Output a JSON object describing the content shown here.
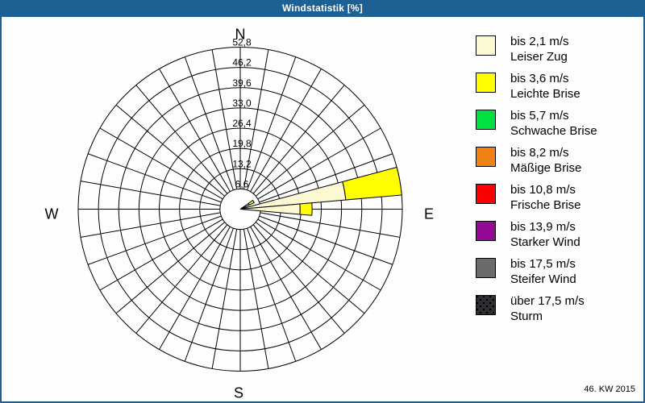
{
  "window": {
    "title": "Windstatistik [%]"
  },
  "footer": {
    "calendar_week": "46. KW 2015"
  },
  "colors": {
    "titlebar": "#1D6194",
    "frame_border": "#1D6194",
    "background": "#FDFEFD",
    "grid": "#000000"
  },
  "compass": {
    "north": "N",
    "east": "E",
    "south": "S",
    "west": "W"
  },
  "legend": {
    "items": [
      {
        "speed": "bis 2,1 m/s",
        "name": "Leiser Zug",
        "color": "#FBF8D2",
        "pattern": "solid"
      },
      {
        "speed": "bis 3,6 m/s",
        "name": "Leichte Brise",
        "color": "#FFFF00",
        "pattern": "solid"
      },
      {
        "speed": "bis 5,7 m/s",
        "name": "Schwache Brise",
        "color": "#00E040",
        "pattern": "solid"
      },
      {
        "speed": "bis 8,2 m/s",
        "name": "Mäßige Brise",
        "color": "#EE8214",
        "pattern": "solid"
      },
      {
        "speed": "bis 10,8 m/s",
        "name": "Frische Brise",
        "color": "#FA0000",
        "pattern": "solid"
      },
      {
        "speed": "bis 13,9 m/s",
        "name": "Starker Wind",
        "color": "#940A94",
        "pattern": "solid"
      },
      {
        "speed": "bis 17,5 m/s",
        "name": "Steifer Wind",
        "color": "#6B6B6B",
        "pattern": "solid"
      },
      {
        "speed": "über 17,5 m/s",
        "name": "Sturm",
        "color": "#2E2E35",
        "pattern": "dots"
      }
    ]
  },
  "chart_data": {
    "type": "wind-rose",
    "title": "Windstatistik [%]",
    "units": "%",
    "sector_count": 36,
    "sector_width_deg": 10,
    "rmax": 52.8,
    "ring_values": [
      6.6,
      13.2,
      19.8,
      26.4,
      33.0,
      39.6,
      46.2,
      52.8
    ],
    "ring_labels": [
      "6,6",
      "13,2",
      "19,8",
      "26,4",
      "33,0",
      "39,6",
      "46,2",
      "52,8"
    ],
    "grid": true,
    "legend_position": "right",
    "sectors": [
      {
        "azimuth_deg": 60,
        "segments": [
          {
            "category": "bis 2,1 m/s",
            "from": 0,
            "to": 3.2,
            "color": "#FBF8D2"
          },
          {
            "category": "bis 3,6 m/s",
            "from": 3.2,
            "to": 5.0,
            "color": "#FFFF00"
          }
        ]
      },
      {
        "azimuth_deg": 80,
        "segments": [
          {
            "category": "bis 2,1 m/s",
            "from": 0,
            "to": 34.5,
            "color": "#FBF8D2"
          },
          {
            "category": "bis 3,6 m/s",
            "from": 34.5,
            "to": 52.8,
            "color": "#FFFF00"
          }
        ]
      },
      {
        "azimuth_deg": 90,
        "segments": [
          {
            "category": "bis 2,1 m/s",
            "from": 0,
            "to": 19.5,
            "color": "#FBF8D2"
          },
          {
            "category": "bis 3,6 m/s",
            "from": 19.5,
            "to": 23.4,
            "color": "#FFFF00"
          }
        ]
      }
    ]
  }
}
